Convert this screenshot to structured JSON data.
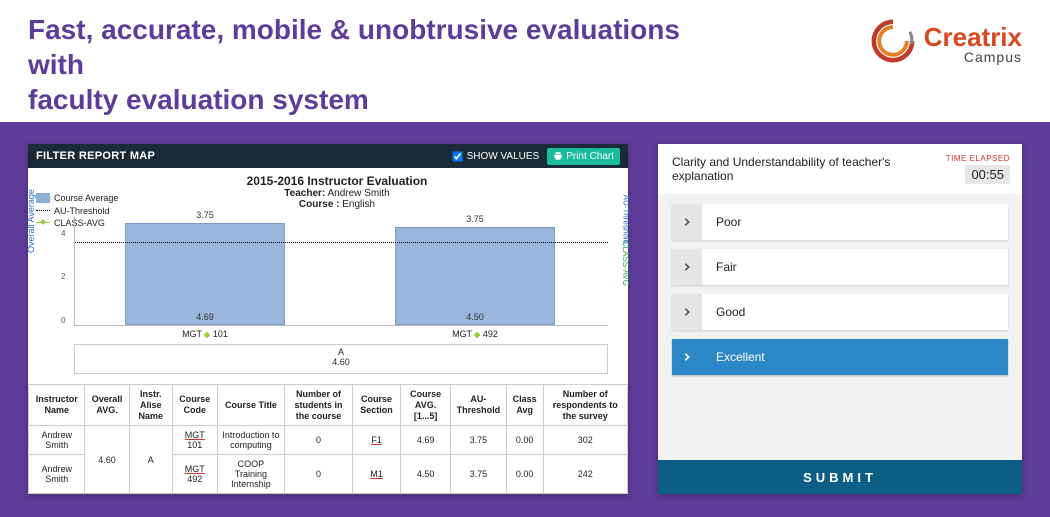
{
  "hero": {
    "headline_line1": "Fast, accurate, mobile & unobtrusive evaluations with",
    "headline_line2": "faculty evaluation system",
    "brand_main": "Creatrix",
    "brand_sub": "Campus",
    "logo_colors": {
      "outer": "#c0392b",
      "inner": "#e67e22",
      "mid": "#7f7f7f"
    }
  },
  "left_panel": {
    "header_title": "FILTER REPORT MAP",
    "show_values_label": "SHOW VALUES",
    "print_label": "Print Chart"
  },
  "chart": {
    "type": "bar",
    "title": "2015-2016 Instructor Evaluation",
    "teacher_label": "Teacher:",
    "teacher": "Andrew Smith",
    "course_label": "Course :",
    "course": "English",
    "legend": {
      "bar": "Course Average",
      "threshold": "AU-Threshold",
      "class": "CLASS-AVG"
    },
    "y_axis_left": "Overall Average",
    "y_axis_right1": "AU-Threshold",
    "y_axis_right2": "CLASS-AVG",
    "background_color": "#ffffff",
    "bar_color": "#8fb0d6",
    "bar_border": "#6d95c4",
    "threshold_color": "#000000",
    "ylim": [
      0,
      5
    ],
    "yticks": [
      0,
      2,
      4
    ],
    "bars": [
      {
        "x_label": "MGT 101",
        "value": 4.69,
        "threshold": 3.75
      },
      {
        "x_label": "MGT 492",
        "value": 4.5,
        "threshold": 3.75
      }
    ],
    "overall_label": "A",
    "overall_value": "4.60"
  },
  "table": {
    "columns": [
      "Instructor Name",
      "Overall AVG.",
      "Instr. Alise Name",
      "Course Code",
      "Course Title",
      "Number of students in the course",
      "Course Section",
      "Course AVG. [1...5]",
      "AU-Threshold",
      "Class Avg",
      "Number of respondents to the survey"
    ],
    "merged": {
      "instructor": "Andrew Smith",
      "overall": "4.60",
      "alise": "A"
    },
    "rows": [
      {
        "code": "MGT 101",
        "title": "Introduction to computing",
        "students": "0",
        "section": "F1",
        "cavg": "4.69",
        "thr": "3.75",
        "clavg": "0.00",
        "resp": "302"
      },
      {
        "code": "MGT 492",
        "title": "COOP Training Internship",
        "students": "0",
        "section": "M1",
        "cavg": "4.50",
        "thr": "3.75",
        "clavg": "0.00",
        "resp": "242"
      }
    ]
  },
  "right_panel": {
    "question": "Clarity and Understandability of teacher's  explanation",
    "timer_label": "TIME ELAPSED",
    "timer_value": "00:55",
    "options": [
      "Poor",
      "Fair",
      "Good",
      "Excellent"
    ],
    "selected_index": 3,
    "submit_label": "SUBMIT",
    "option_bg": "#ffffff",
    "option_sel_bg": "#2c87c7",
    "submit_bg": "#0d5e84"
  }
}
